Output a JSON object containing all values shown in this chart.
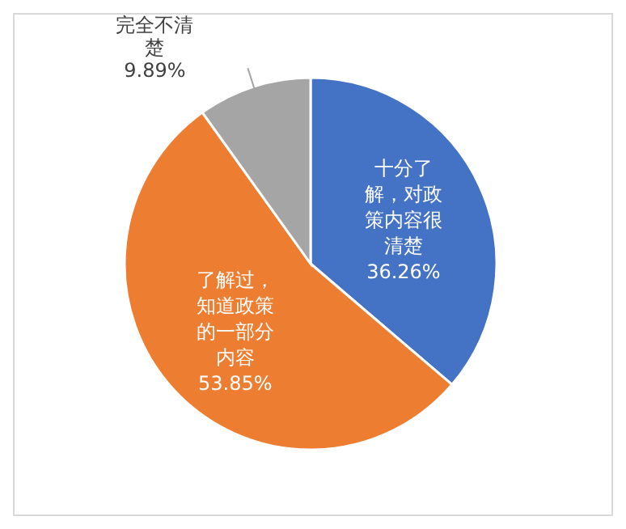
{
  "chart_data": {
    "type": "pie",
    "categories": [
      "十分了解，对政策内容很清楚",
      "了解过，知道政策的一部分内容",
      "完全不清楚"
    ],
    "values": [
      36.26,
      53.85,
      9.89
    ],
    "value_labels": [
      "36.26%",
      "53.85%",
      "9.89%"
    ],
    "colors": [
      "#4472c4",
      "#ed7d31",
      "#a5a5a5"
    ]
  }
}
